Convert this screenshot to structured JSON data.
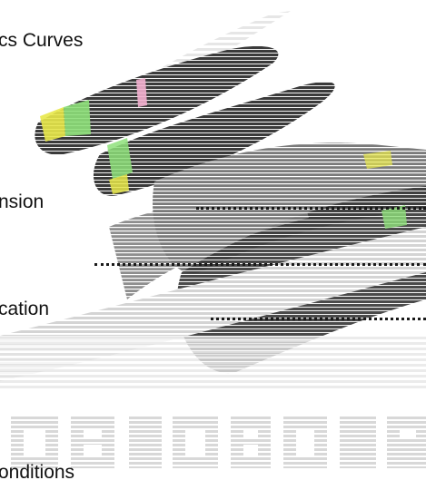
{
  "labels": {
    "title": "cs Curves",
    "extension": "nsion",
    "location": "cation",
    "conditions": "onditions"
  },
  "colors": {
    "hatch_dark": "#2b2b2b",
    "hatch_mid": "#6e6e6e",
    "hatch_light": "#cfcfcf",
    "accent_green": "#7ddc6a",
    "accent_yellow": "#e8e84a",
    "accent_pink": "#f0a0c8",
    "leader": "#1a1a1a"
  }
}
